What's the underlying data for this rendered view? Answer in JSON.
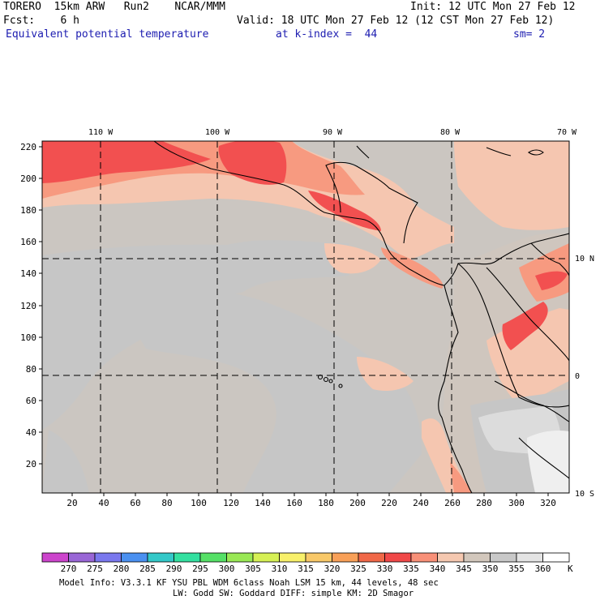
{
  "header": {
    "model": "TORERO  15km ARW   Run2    NCAR/MMM",
    "init": "Init: 12 UTC Mon 27 Feb 12",
    "fcst": "Fcst:    6 h",
    "valid": "Valid: 18 UTC Mon 27 Feb 12 (12 CST Mon 27 Feb 12)",
    "field": "Equivalent potential temperature",
    "level": "at k-index =  44",
    "smoothing": "sm= 2"
  },
  "map": {
    "top_lon_labels": [
      "110 W",
      "100 W",
      "90 W",
      "80 W",
      "70 W"
    ],
    "right_lat_labels": [
      "10 N",
      "0",
      "10 S"
    ],
    "y_axis_ticks": [
      "220",
      "200",
      "180",
      "160",
      "140",
      "120",
      "100",
      "80",
      "60",
      "40",
      "20"
    ],
    "x_axis_ticks": [
      "20",
      "40",
      "60",
      "80",
      "100",
      "120",
      "140",
      "160",
      "180",
      "200",
      "220",
      "240",
      "260",
      "280",
      "300",
      "320"
    ],
    "colors": {
      "hot": "#f25050",
      "warm": "#f89078",
      "mild": "#f5c8b0",
      "base": "#d2c7bc",
      "cool": "#c8c8c8",
      "cold": "#dcdcdc",
      "coldest": "#efefef"
    }
  },
  "legend": {
    "unit": "K",
    "levels": [
      "270",
      "275",
      "280",
      "285",
      "290",
      "295",
      "300",
      "305",
      "310",
      "315",
      "320",
      "325",
      "330",
      "335",
      "340",
      "345",
      "350",
      "355",
      "360"
    ],
    "colors": [
      "#cc44cc",
      "#9966d6",
      "#7a78ee",
      "#4a90f0",
      "#33c8c8",
      "#33e0a0",
      "#55e066",
      "#99e855",
      "#d6f055",
      "#f8f06a",
      "#f8c868",
      "#f8a058",
      "#f06848",
      "#f04848",
      "#f89078",
      "#f5c8b0",
      "#d2c7bc",
      "#c8c8c8",
      "#e4e4e4",
      "#ffffff"
    ]
  },
  "footer": {
    "line1": "Model Info: V3.3.1     KF      YSU PBL   WDM 6class  Noah LSM  15 km,   44 levels,   48 sec",
    "line2": "LW: Godd SW: Goddard DIFF: simple KM: 2D Smagor"
  }
}
